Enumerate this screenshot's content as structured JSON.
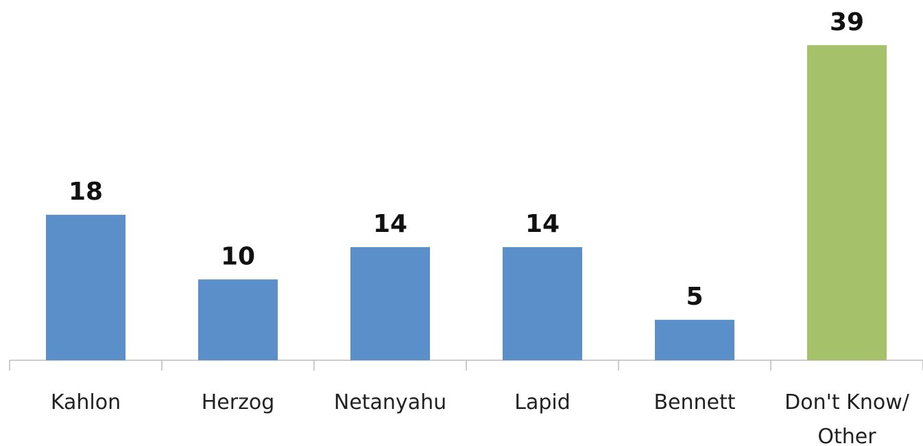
{
  "chart_data": {
    "type": "bar",
    "categories": [
      "Kahlon",
      "Herzog",
      "Netanyahu",
      "Lapid",
      "Bennett",
      "Don't Know/ Other"
    ],
    "values": [
      18,
      10,
      14,
      14,
      5,
      39
    ],
    "colors": [
      "#5b8fc9",
      "#5b8fc9",
      "#5b8fc9",
      "#5b8fc9",
      "#5b8fc9",
      "#a5c26a"
    ],
    "ylim": [
      0,
      40
    ]
  }
}
